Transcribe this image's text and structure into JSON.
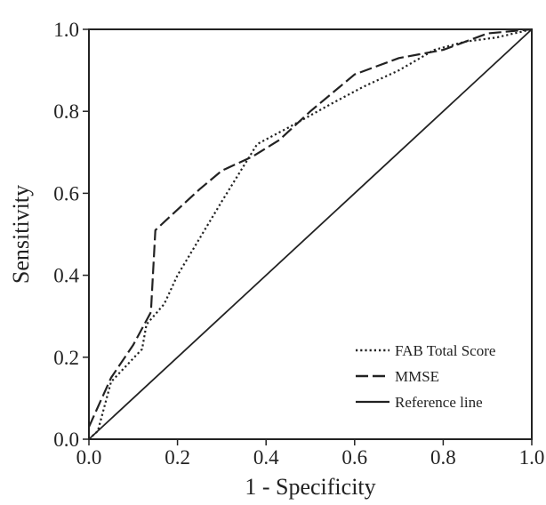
{
  "chart_data": {
    "type": "line",
    "title": "",
    "xlabel": "1 - Specificity",
    "ylabel": "Sensitivity",
    "xlim": [
      0,
      1
    ],
    "ylim": [
      0,
      1
    ],
    "x_ticks": [
      0.0,
      0.2,
      0.4,
      0.6,
      0.8,
      1.0
    ],
    "y_ticks": [
      0.0,
      0.2,
      0.4,
      0.6,
      0.8,
      1.0
    ],
    "x_tick_labels": [
      "0.0",
      "0.2",
      "0.4",
      "0.6",
      "0.8",
      "1.0"
    ],
    "y_tick_labels": [
      "0.0",
      "0.2",
      "0.4",
      "0.6",
      "0.8",
      "1.0"
    ],
    "grid": false,
    "legend_position": "bottom-right",
    "series": [
      {
        "name": "FAB Total Score",
        "line_style": "dotted",
        "color": "#222222",
        "x": [
          0.0,
          0.02,
          0.05,
          0.12,
          0.13,
          0.17,
          0.2,
          0.25,
          0.3,
          0.38,
          0.45,
          0.5,
          0.55,
          0.62,
          0.7,
          0.78,
          0.85,
          0.92,
          1.0
        ],
        "y": [
          0.0,
          0.02,
          0.14,
          0.22,
          0.28,
          0.33,
          0.4,
          0.49,
          0.58,
          0.72,
          0.76,
          0.79,
          0.82,
          0.86,
          0.9,
          0.95,
          0.97,
          0.98,
          1.0
        ]
      },
      {
        "name": "MMSE",
        "line_style": "dashed",
        "color": "#222222",
        "x": [
          0.0,
          0.05,
          0.1,
          0.14,
          0.15,
          0.2,
          0.25,
          0.3,
          0.37,
          0.43,
          0.5,
          0.6,
          0.7,
          0.8,
          0.9,
          1.0
        ],
        "y": [
          0.03,
          0.15,
          0.23,
          0.31,
          0.51,
          0.56,
          0.61,
          0.655,
          0.69,
          0.73,
          0.8,
          0.89,
          0.93,
          0.95,
          0.99,
          1.0
        ]
      },
      {
        "name": "Reference line",
        "line_style": "solid",
        "color": "#222222",
        "x": [
          0.0,
          1.0
        ],
        "y": [
          0.0,
          1.0
        ]
      }
    ]
  }
}
